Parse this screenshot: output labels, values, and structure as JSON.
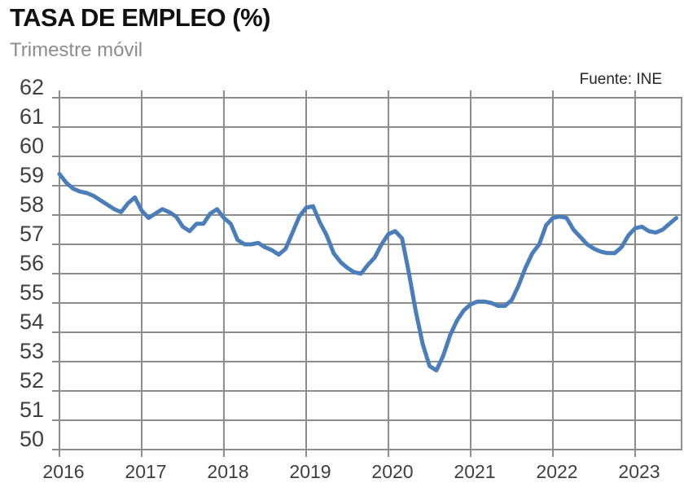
{
  "chart_data": {
    "type": "line",
    "title": "TASA DE EMPLEO (%)",
    "subtitle": "Trimestre móvil",
    "source": "Fuente: INE",
    "ylim": [
      50,
      62
    ],
    "y_ticks": [
      62,
      61,
      60,
      59,
      58,
      57,
      56,
      55,
      54,
      53,
      52,
      51,
      50
    ],
    "x_tick_labels": [
      "2016",
      "2017",
      "2018",
      "2019",
      "2020",
      "2021",
      "2022",
      "2023"
    ],
    "x_frequency": "monthly",
    "x_start": "2016-01",
    "x_end": "2023-07",
    "grid": "on",
    "legend": "none",
    "grid_color": "#8c8c8c",
    "axis_text_color": "#3f3f3f",
    "series": [
      {
        "name": "Tasa de empleo, trimestre móvil",
        "color": "#4a7db9",
        "values": [
          59.4,
          59.1,
          58.9,
          58.8,
          58.75,
          58.65,
          58.5,
          58.35,
          58.2,
          58.1,
          58.4,
          58.6,
          58.15,
          57.9,
          58.05,
          58.2,
          58.1,
          57.95,
          57.6,
          57.45,
          57.7,
          57.7,
          58.05,
          58.2,
          57.9,
          57.7,
          57.15,
          57.0,
          57.0,
          57.05,
          56.9,
          56.8,
          56.65,
          56.85,
          57.4,
          57.95,
          58.25,
          58.3,
          57.75,
          57.3,
          56.7,
          56.4,
          56.2,
          56.05,
          56.0,
          56.3,
          56.55,
          57.0,
          57.35,
          57.45,
          57.2,
          56.0,
          54.7,
          53.6,
          52.85,
          52.7,
          53.2,
          53.9,
          54.4,
          54.75,
          54.95,
          55.05,
          55.05,
          55.0,
          54.9,
          54.9,
          55.1,
          55.6,
          56.2,
          56.7,
          57.0,
          57.65,
          57.9,
          57.95,
          57.9,
          57.5,
          57.25,
          57.0,
          56.85,
          56.75,
          56.7,
          56.7,
          56.9,
          57.3,
          57.55,
          57.6,
          57.45,
          57.4,
          57.5,
          57.7,
          57.9
        ]
      }
    ]
  }
}
